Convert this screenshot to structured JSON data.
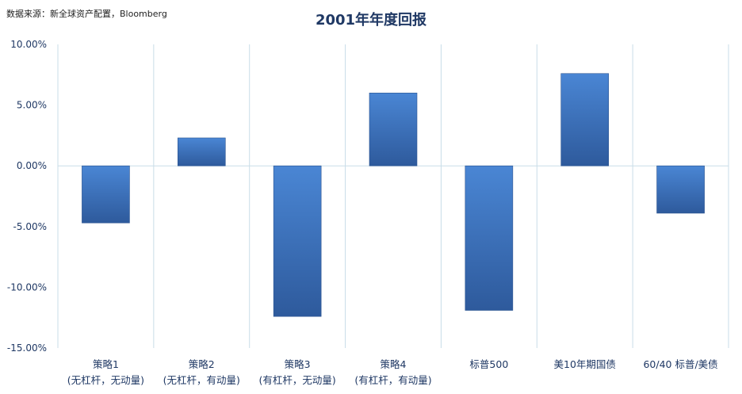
{
  "source_note": "数据来源：新全球资产配置，Bloomberg",
  "chart_data": {
    "type": "bar",
    "title": "2001年年度回报",
    "xlabel": "",
    "ylabel": "",
    "ylim": [
      -15,
      10
    ],
    "y_ticks": [
      10,
      5,
      0,
      -5,
      -10,
      -15
    ],
    "y_tick_labels": [
      "10.00%",
      "5.00%",
      "0.00%",
      "-5.00%",
      "-10.00%",
      "-15.00%"
    ],
    "categories": [
      [
        "策略1",
        "(无杠杆，无动量)"
      ],
      [
        "策略2",
        "(无杠杆，有动量)"
      ],
      [
        "策略3",
        "(有杠杆，无动量)"
      ],
      [
        "策略4",
        "(有杠杆，有动量)"
      ],
      [
        "标普500"
      ],
      [
        "美10年期国债"
      ],
      [
        "60/40 标普/美债"
      ]
    ],
    "values": [
      -4.7,
      2.3,
      -12.4,
      6.0,
      -11.9,
      7.6,
      -3.9
    ],
    "grid": "vertical",
    "legend": "none",
    "colors": {
      "bar_top": "#4a86d4",
      "bar_bottom": "#2e5a9c",
      "grid": "#c9dde8",
      "text": "#1f3864"
    }
  }
}
